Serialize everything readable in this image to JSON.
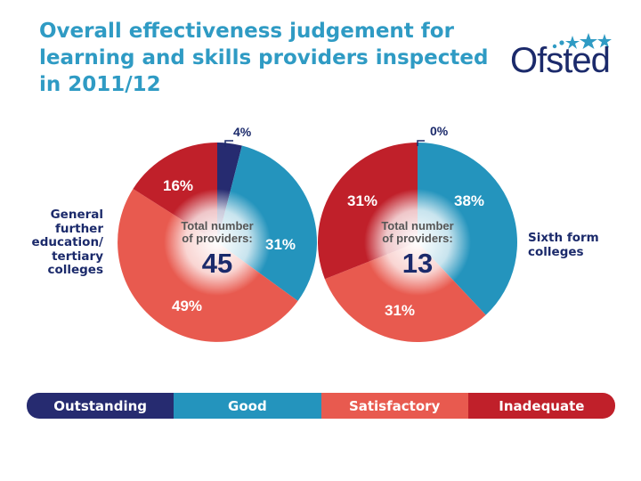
{
  "title": "Overall effectiveness judgement for learning and skills providers inspected in 2011/12",
  "logo": {
    "text": "Ofsted"
  },
  "colors": {
    "outstanding": "#262b70",
    "good": "#2494bd",
    "satisfactory": "#e85a4f",
    "inadequate": "#c0202a",
    "label_dark": "#1b2a6b"
  },
  "legend": [
    "Outstanding",
    "Good",
    "Satisfactory",
    "Inadequate"
  ],
  "chart_data": [
    {
      "type": "pie",
      "title": "General further education/ tertiary colleges",
      "center_label": "Total number of providers:",
      "total": "45",
      "categories": [
        "Outstanding",
        "Good",
        "Satisfactory",
        "Inadequate"
      ],
      "values": [
        4,
        31,
        49,
        16
      ],
      "labels": [
        "4%",
        "31%",
        "49%",
        "16%"
      ]
    },
    {
      "type": "pie",
      "title": "Sixth form colleges",
      "center_label": "Total number of providers:",
      "total": "13",
      "categories": [
        "Outstanding",
        "Good",
        "Satisfactory",
        "Inadequate"
      ],
      "values": [
        0,
        38,
        31,
        31
      ],
      "labels": [
        "0%",
        "38%",
        "31%",
        "31%"
      ]
    }
  ]
}
